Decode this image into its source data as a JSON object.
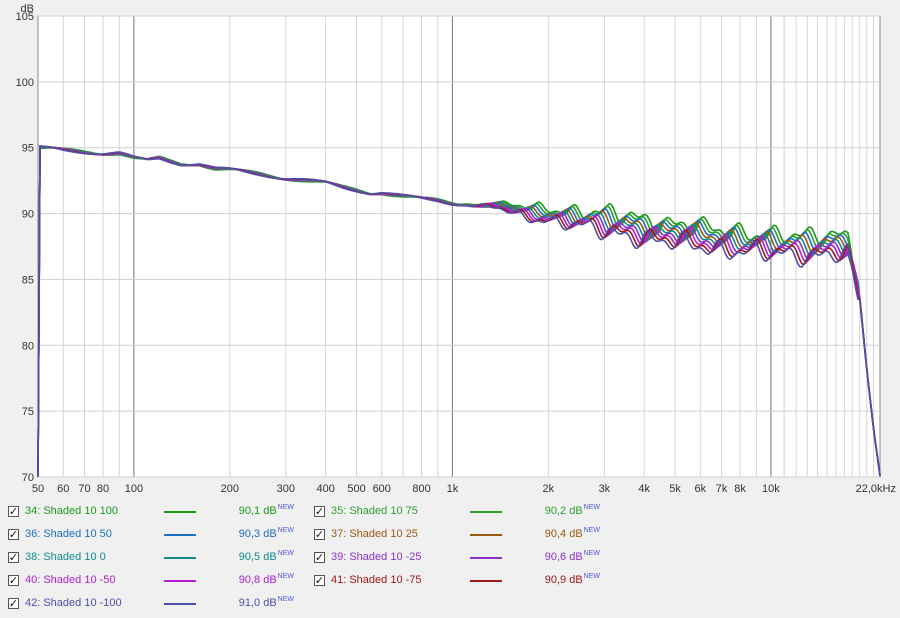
{
  "chart_data": {
    "type": "line",
    "y_unit": "dB",
    "x_unit": "Hz",
    "x_scale": "log",
    "xlim": [
      50,
      22000
    ],
    "ylim": [
      70,
      105
    ],
    "grid": true,
    "y_ticks": [
      "105",
      "100",
      "95",
      "90",
      "85",
      "80",
      "75",
      "70"
    ],
    "x_ticks": [
      {
        "v": 50,
        "label": "50"
      },
      {
        "v": 60,
        "label": "60"
      },
      {
        "v": 70,
        "label": "70"
      },
      {
        "v": 80,
        "label": "80"
      },
      {
        "v": 100,
        "label": "100"
      },
      {
        "v": 200,
        "label": "200"
      },
      {
        "v": 300,
        "label": "300"
      },
      {
        "v": 400,
        "label": "400"
      },
      {
        "v": 500,
        "label": "500"
      },
      {
        "v": 600,
        "label": "600"
      },
      {
        "v": 800,
        "label": "800"
      },
      {
        "v": 1000,
        "label": "1k"
      },
      {
        "v": 2000,
        "label": "2k"
      },
      {
        "v": 3000,
        "label": "3k"
      },
      {
        "v": 4000,
        "label": "4k"
      },
      {
        "v": 5000,
        "label": "5k"
      },
      {
        "v": 6000,
        "label": "6k"
      },
      {
        "v": 7000,
        "label": "7k"
      },
      {
        "v": 8000,
        "label": "8k"
      },
      {
        "v": 10000,
        "label": "10k"
      },
      {
        "v": 22000,
        "label": "22,0kHz"
      }
    ],
    "base_curve": [
      [
        50,
        95.0
      ],
      [
        60,
        94.8
      ],
      [
        70,
        94.7
      ],
      [
        80,
        94.6
      ],
      [
        90,
        94.6
      ],
      [
        100,
        94.2
      ],
      [
        110,
        94.0
      ],
      [
        120,
        94.2
      ],
      [
        140,
        93.8
      ],
      [
        160,
        93.8
      ],
      [
        180,
        93.4
      ],
      [
        200,
        93.3
      ],
      [
        250,
        93.0
      ],
      [
        300,
        92.7
      ],
      [
        350,
        92.5
      ],
      [
        400,
        92.3
      ],
      [
        450,
        92.0
      ],
      [
        500,
        91.8
      ],
      [
        550,
        91.6
      ],
      [
        600,
        91.6
      ],
      [
        700,
        91.3
      ],
      [
        800,
        91.1
      ],
      [
        900,
        91.0
      ],
      [
        1000,
        90.8
      ],
      [
        1200,
        90.7
      ],
      [
        1400,
        90.5
      ],
      [
        1600,
        90.2
      ],
      [
        1800,
        90.0
      ],
      [
        2000,
        90.0
      ],
      [
        2500,
        89.6
      ],
      [
        3000,
        89.3
      ],
      [
        3500,
        89.1
      ],
      [
        4000,
        88.9
      ],
      [
        4500,
        88.6
      ],
      [
        5000,
        88.5
      ],
      [
        6000,
        88.2
      ],
      [
        7000,
        88.0
      ],
      [
        8000,
        87.9
      ],
      [
        9000,
        87.8
      ],
      [
        10000,
        87.6
      ],
      [
        12000,
        87.5
      ],
      [
        14000,
        87.6
      ],
      [
        16000,
        87.8
      ],
      [
        17500,
        87.6
      ],
      [
        19000,
        83.5
      ],
      [
        20000,
        78.0
      ],
      [
        21000,
        73.5
      ],
      [
        22000,
        70.0
      ]
    ],
    "series": [
      {
        "name": "34: Shaded 10 100",
        "color": "#1a9a1a",
        "value": "90,1 dB",
        "offset": 0.6,
        "phase": 0.0
      },
      {
        "name": "35: Shaded 10 75",
        "color": "#2e9e2e",
        "value": "90,2 dB",
        "offset": 0.45,
        "phase": 0.5
      },
      {
        "name": "36: Shaded 10 50",
        "color": "#1c6fc0",
        "value": "90,3 dB",
        "offset": 0.3,
        "phase": 1.0
      },
      {
        "name": "37: Shaded 10 25",
        "color": "#9a5a14",
        "value": "90,4 dB",
        "offset": 0.15,
        "phase": 1.5
      },
      {
        "name": "38: Shaded 10 0",
        "color": "#118a8a",
        "value": "90,5 dB",
        "offset": 0.0,
        "phase": 2.0
      },
      {
        "name": "39: Shaded 10 -25",
        "color": "#8a32c8",
        "value": "90,6 dB",
        "offset": -0.15,
        "phase": 2.5
      },
      {
        "name": "40: Shaded 10 -50",
        "color": "#b020d0",
        "value": "90,8 dB",
        "offset": -0.3,
        "phase": 3.0
      },
      {
        "name": "41: Shaded 10 -75",
        "color": "#a01818",
        "value": "90,9 dB",
        "offset": -0.45,
        "phase": 3.5
      },
      {
        "name": "42: Shaded 10 -100",
        "color": "#5050a8",
        "value": "91,0 dB",
        "offset": -0.6,
        "phase": 4.0
      }
    ]
  },
  "legend": {
    "checked_glyph": "✓",
    "value_suffix": "NEW"
  }
}
